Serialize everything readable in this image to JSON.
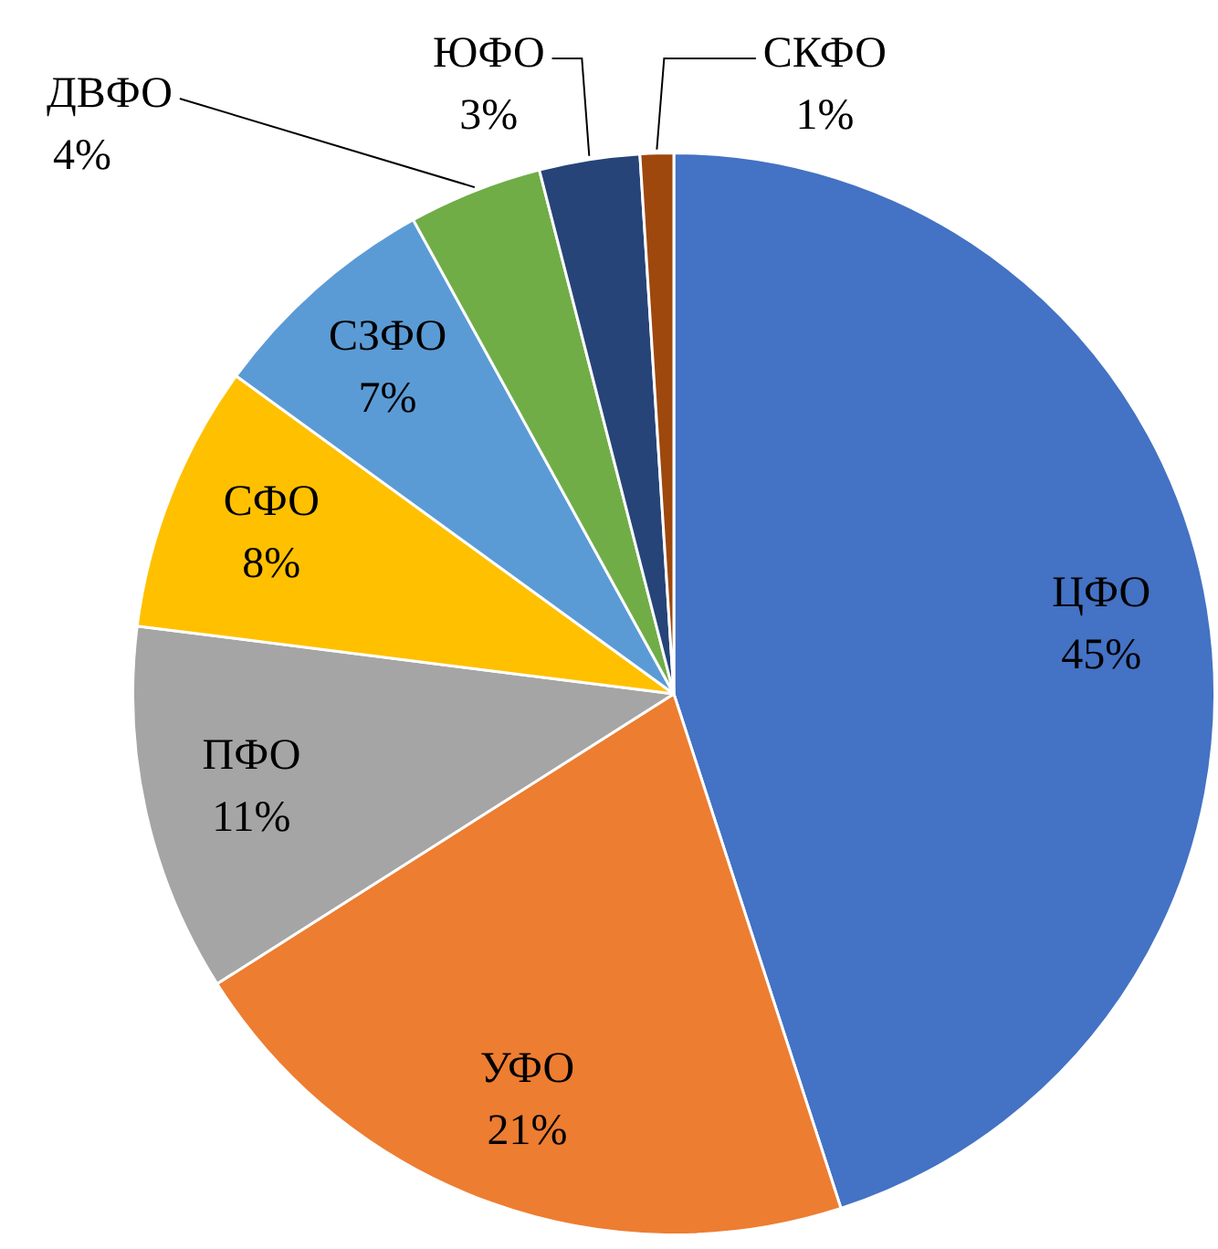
{
  "chart_data": {
    "type": "pie",
    "categories": [
      "ЦФО",
      "УФО",
      "ПФО",
      "СФО",
      "СЗФО",
      "ДВФО",
      "ЮФО",
      "СКФО"
    ],
    "values": [
      45,
      21,
      11,
      8,
      7,
      4,
      3,
      1
    ],
    "value_labels": [
      "45%",
      "21%",
      "11%",
      "8%",
      "7%",
      "4%",
      "3%",
      "1%"
    ],
    "colors": [
      "#4472c4",
      "#ed7d31",
      "#a5a5a5",
      "#ffc000",
      "#5b9bd5",
      "#70ad47",
      "#264478",
      "#9e480e"
    ],
    "legend": false
  }
}
